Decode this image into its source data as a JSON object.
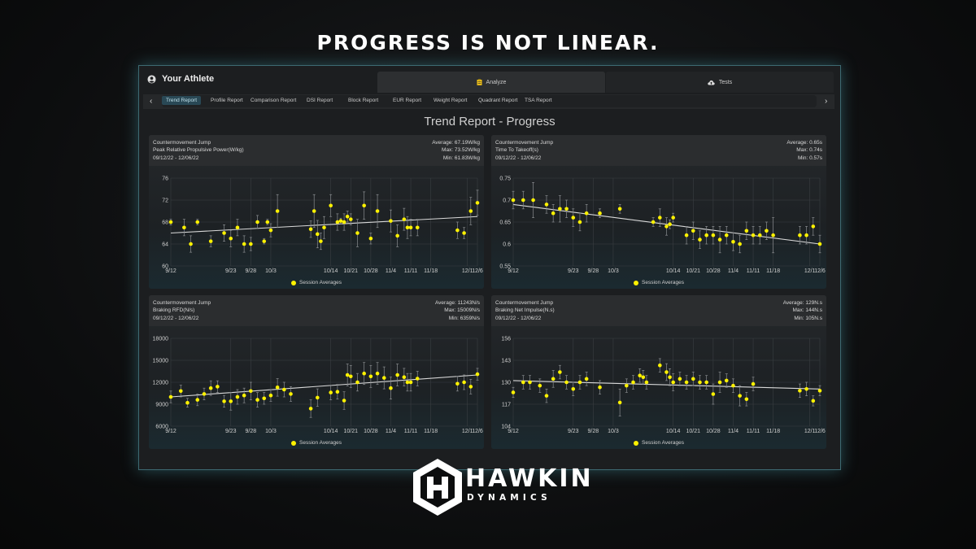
{
  "headline": "PROGRESS IS NOT LINEAR.",
  "athlete_name": "Your Athlete",
  "tabs": [
    {
      "label": "Analyze",
      "icon": "clipboard-icon"
    },
    {
      "label": "Tests",
      "icon": "cloud-upload-icon"
    }
  ],
  "nav": {
    "active": "Trend Report",
    "items": [
      "Trend Report",
      "Profile Report",
      "Comparison Report",
      "DSI Report",
      "Block Report",
      "EUR Report",
      "Weight Report",
      "Quadrant Report",
      "TSA Report"
    ]
  },
  "report_title": "Trend Report - Progress",
  "colors": {
    "point": "#fff200",
    "trend": "#d9d9d9",
    "accent_border": "#3d6a72"
  },
  "legend_label": "Session Averages",
  "x_tick_labels": [
    "9/12",
    "9/23",
    "9/28",
    "10/3",
    "10/14",
    "10/21",
    "10/28",
    "11/4",
    "11/11",
    "11/18",
    "12/1",
    "12/6"
  ],
  "charts": [
    {
      "test": "Countermovement Jump",
      "metric": "Peak Relative Propulsive Power(W/kg)",
      "range": "09/12/22 - 12/06/22",
      "average": "Average: 67.19W/kg",
      "max": "Max: 73.52W/kg",
      "min": "Min: 61.83W/kg",
      "y_ticks": [
        "76",
        "72",
        "68",
        "64",
        "60"
      ],
      "ylim": [
        60,
        76
      ]
    },
    {
      "test": "Countermovement Jump",
      "metric": "Time To Takeoff(s)",
      "range": "09/12/22 - 12/06/22",
      "average": "Average: 0.65s",
      "max": "Max: 0.74s",
      "min": "Min: 0.57s",
      "y_ticks": [
        "0.75",
        "0.7",
        "0.65",
        "0.6",
        "0.55"
      ],
      "ylim": [
        0.55,
        0.75
      ]
    },
    {
      "test": "Countermovement Jump",
      "metric": "Braking RFD(N/s)",
      "range": "09/12/22 - 12/06/22",
      "average": "Average: 11243N/s",
      "max": "Max: 15009N/s",
      "min": "Min: 6359N/s",
      "y_ticks": [
        "18000",
        "15000",
        "12000",
        "9000",
        "6000"
      ],
      "ylim": [
        6000,
        18000
      ]
    },
    {
      "test": "Countermovement Jump",
      "metric": "Braking Net Impulse(N.s)",
      "range": "09/12/22 - 12/06/22",
      "average": "Average: 129N.s",
      "max": "Max: 144N.s",
      "min": "Min: 105N.s",
      "y_ticks": [
        "156",
        "143",
        "130",
        "117",
        "104"
      ],
      "ylim": [
        104,
        156
      ]
    }
  ],
  "chart_data": [
    {
      "type": "scatter",
      "title": "Peak Relative Propulsive Power(W/kg)",
      "series": [
        {
          "name": "Session Averages",
          "x": [
            0,
            2,
            3,
            4,
            6,
            8,
            9,
            10,
            11,
            12,
            13,
            14,
            14.5,
            15,
            16,
            21,
            21.5,
            22,
            22.5,
            23,
            24,
            25,
            25.5,
            26,
            26.5,
            27,
            28,
            29,
            30,
            31,
            33,
            34,
            35,
            35.5,
            36,
            37,
            43,
            44,
            45,
            46
          ],
          "y": [
            68,
            67,
            64,
            68,
            64.5,
            66,
            65,
            67,
            64,
            64,
            68,
            64.5,
            68,
            66.5,
            70,
            66.7,
            70,
            65.8,
            64.5,
            67,
            71,
            68,
            68.2,
            68,
            69,
            68.5,
            66,
            71,
            65,
            70,
            68.2,
            65.5,
            68.5,
            67,
            67,
            67,
            66.5,
            66,
            70,
            71.5
          ],
          "err": [
            0.5,
            1.5,
            1.5,
            0.5,
            1,
            1.5,
            1.5,
            1.5,
            1.5,
            1.2,
            1.2,
            0.5,
            0.5,
            1.2,
            3,
            1.5,
            3,
            2.5,
            1.5,
            2,
            2,
            1.5,
            0.5,
            1.5,
            1,
            1,
            2.5,
            2.5,
            1,
            3,
            2,
            2,
            2,
            2,
            1.5,
            1.5,
            1.5,
            1,
            2.5,
            2.3
          ]
        }
      ],
      "trend": [
        66,
        69
      ],
      "ylim": [
        60,
        76
      ]
    },
    {
      "type": "scatter",
      "title": "Time To Takeoff(s)",
      "series": [
        {
          "name": "Session Averages",
          "x": [
            0,
            1.5,
            3,
            5,
            6,
            7,
            8,
            9,
            10,
            11,
            13,
            16,
            21,
            22,
            23,
            23.5,
            24,
            26,
            27,
            28,
            29,
            30,
            31,
            32,
            33,
            34,
            35,
            36,
            37,
            38,
            39,
            43,
            44,
            45,
            46
          ],
          "y": [
            0.7,
            0.7,
            0.7,
            0.69,
            0.67,
            0.68,
            0.68,
            0.66,
            0.65,
            0.67,
            0.67,
            0.68,
            0.65,
            0.66,
            0.64,
            0.645,
            0.66,
            0.62,
            0.63,
            0.61,
            0.62,
            0.62,
            0.61,
            0.62,
            0.605,
            0.6,
            0.63,
            0.62,
            0.62,
            0.63,
            0.62,
            0.62,
            0.62,
            0.64,
            0.6
          ],
          "err": [
            0.02,
            0.02,
            0.04,
            0.02,
            0.02,
            0.03,
            0.02,
            0.02,
            0.02,
            0.02,
            0.01,
            0.01,
            0.01,
            0.02,
            0.02,
            0.01,
            0.01,
            0.02,
            0.02,
            0.02,
            0.02,
            0.02,
            0.03,
            0.02,
            0.02,
            0.02,
            0.02,
            0.02,
            0.02,
            0.02,
            0.04,
            0.02,
            0.02,
            0.02,
            0.02
          ]
        }
      ],
      "trend": [
        0.69,
        0.6
      ],
      "ylim": [
        0.55,
        0.75
      ]
    },
    {
      "type": "scatter",
      "title": "Braking RFD(N/s)",
      "series": [
        {
          "name": "Session Averages",
          "x": [
            0,
            1.5,
            2.5,
            4,
            5,
            6,
            7,
            8,
            9,
            10,
            11,
            12,
            13,
            14,
            15,
            16,
            17,
            18,
            21,
            22,
            24,
            25,
            26,
            26.5,
            27,
            28,
            29,
            30,
            31,
            32,
            33,
            34,
            35,
            35.5,
            36,
            37,
            43,
            44,
            45,
            46
          ],
          "y": [
            10000,
            10800,
            9200,
            9600,
            10400,
            11200,
            11400,
            9400,
            9400,
            10000,
            10200,
            10800,
            9600,
            9800,
            10200,
            11300,
            11000,
            10400,
            8400,
            9900,
            10600,
            10700,
            9500,
            13000,
            12800,
            12000,
            13200,
            12800,
            13200,
            12600,
            11200,
            13000,
            12700,
            12000,
            12000,
            12500,
            11800,
            12000,
            11400,
            13100
          ],
          "err": [
            800,
            800,
            600,
            800,
            800,
            1000,
            800,
            800,
            1200,
            1000,
            1000,
            1200,
            1000,
            800,
            800,
            1200,
            1000,
            1000,
            1200,
            1200,
            1000,
            1000,
            1200,
            1500,
            1500,
            1200,
            1500,
            1500,
            1500,
            1500,
            1500,
            1500,
            1200,
            1200,
            1200,
            1000,
            1000,
            1000,
            1000,
            800
          ]
        }
      ],
      "trend": [
        10000,
        13000
      ],
      "ylim": [
        6000,
        18000
      ]
    },
    {
      "type": "scatter",
      "title": "Braking Net Impulse(N.s)",
      "series": [
        {
          "name": "Session Averages",
          "x": [
            0,
            1.5,
            2.5,
            4,
            5,
            6,
            7,
            8,
            9,
            10,
            11,
            13,
            16,
            17,
            18,
            19,
            19.5,
            20,
            22,
            23,
            23.5,
            24,
            25,
            26,
            27,
            28,
            29,
            30,
            31,
            32,
            33,
            34,
            35,
            36,
            43,
            44,
            45,
            46
          ],
          "y": [
            124,
            130,
            130,
            128,
            122,
            132,
            136,
            130,
            126,
            130,
            132,
            127,
            118,
            128,
            130,
            134,
            133,
            130,
            140,
            136,
            133,
            130,
            132,
            130,
            132,
            130,
            130,
            123,
            130,
            131,
            128,
            122,
            120,
            129,
            125,
            126,
            119,
            125
          ],
          "err": [
            3,
            4,
            4,
            4,
            4,
            5,
            4,
            4,
            4,
            4,
            4,
            4,
            8,
            4,
            4,
            4,
            4,
            4,
            4,
            5,
            5,
            5,
            4,
            4,
            4,
            4,
            4,
            6,
            6,
            4,
            4,
            6,
            4,
            4,
            4,
            4,
            3,
            3
          ]
        }
      ],
      "trend": [
        131,
        126
      ],
      "ylim": [
        104,
        156
      ]
    }
  ],
  "brand": {
    "name": "HAWKIN",
    "sub": "DYNAMICS",
    "logo_icon": "hexagon-h-logo-icon"
  }
}
